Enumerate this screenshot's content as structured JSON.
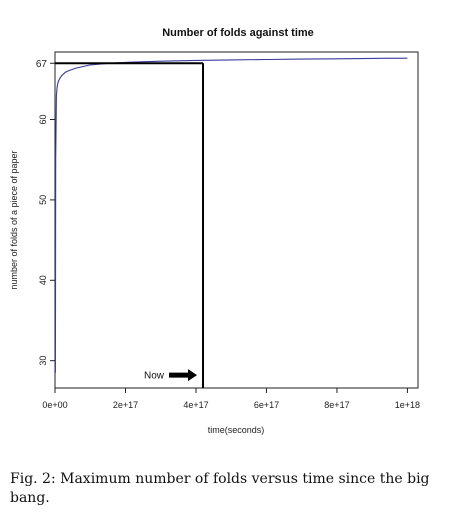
{
  "chart_data": {
    "type": "line",
    "title": "Number of folds against time",
    "xlabel": "time(seconds)",
    "ylabel": "number of folds of a piece of paper",
    "xlim": [
      0,
      1.03e+18
    ],
    "ylim": [
      26.6,
      68.4
    ],
    "x_ticks": [
      {
        "value": 0,
        "label": "0e+00"
      },
      {
        "value": 2e+17,
        "label": "2e+17"
      },
      {
        "value": 4e+17,
        "label": "4e+17"
      },
      {
        "value": 6e+17,
        "label": "6e+17"
      },
      {
        "value": 8e+17,
        "label": "8e+17"
      },
      {
        "value": 1e+18,
        "label": "1e+18"
      }
    ],
    "y_ticks": [
      {
        "value": 30,
        "label": "30"
      },
      {
        "value": 40,
        "label": "40"
      },
      {
        "value": 50,
        "label": "50"
      },
      {
        "value": 60,
        "label": "60"
      }
    ],
    "y_tick_highlight": {
      "value": 67,
      "label": "67"
    },
    "series": [
      {
        "color": "#3a3a9a",
        "x": [
          1000000000000000.0,
          2000000000000000.0,
          4000000000000000.0,
          6000000000000000.0,
          8000000000000000.0,
          1e+16,
          1.5e+16,
          2e+16,
          3e+16,
          4e+16,
          6e+16,
          8e+16,
          1e+17,
          1.5e+17,
          2e+17,
          3e+17,
          4e+17,
          5e+17,
          6e+17,
          7e+17,
          8e+17,
          9e+17,
          1e+18
        ],
        "values": [
          28.5,
          55,
          63,
          64,
          64.5,
          64.8,
          65.2,
          65.5,
          65.9,
          66.1,
          66.4,
          66.6,
          66.8,
          67.0,
          67.1,
          67.25,
          67.35,
          67.42,
          67.47,
          67.52,
          67.56,
          67.6,
          67.63
        ]
      }
    ],
    "reference_lines": {
      "vertical_x": 4.2e+17,
      "horizontal_y": 67
    },
    "annotation": {
      "text": "Now",
      "x": 4.2e+17,
      "y": 28.2
    },
    "grid": false,
    "legend": "none"
  },
  "caption": "Fig. 2: Maximum number of folds versus time since the big bang."
}
